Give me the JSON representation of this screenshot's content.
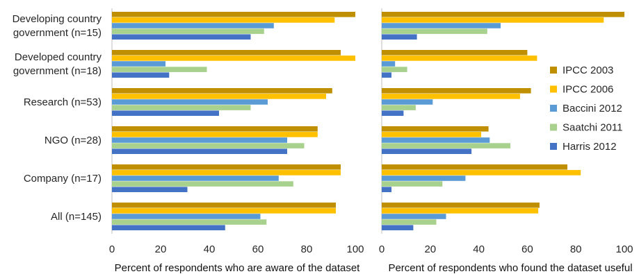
{
  "chart_data": {
    "type": "bar",
    "orientation": "horizontal",
    "categories": [
      [
        "Developing country",
        "government (n=15)"
      ],
      [
        "Developed country",
        "government (n=18)"
      ],
      [
        "Research (n=53)"
      ],
      [
        "NGO (n=28)"
      ],
      [
        "Company (n=17)"
      ],
      [
        "All (n=145)"
      ]
    ],
    "series": [
      {
        "name": "IPCC 2003",
        "color": "#bf8f00"
      },
      {
        "name": "IPCC 2006",
        "color": "#ffc000"
      },
      {
        "name": "Baccini 2012",
        "color": "#5b9bd5"
      },
      {
        "name": "Saatchi 2011",
        "color": "#a9d18e"
      },
      {
        "name": "Harris 2012",
        "color": "#4472c4"
      }
    ],
    "panels": [
      {
        "xlabel": "Percent of respondents who are aware of the dataset",
        "xlim": [
          0,
          100
        ],
        "ticks": [
          0,
          20,
          40,
          60,
          80,
          100
        ],
        "values": [
          [
            100,
            91.5,
            66.5,
            62.5,
            57
          ],
          [
            94,
            100,
            22,
            39,
            23.5
          ],
          [
            90.5,
            88,
            64,
            57,
            44
          ],
          [
            84.5,
            84.5,
            72,
            79,
            72
          ],
          [
            94,
            94,
            68.5,
            74.5,
            31
          ],
          [
            92,
            92,
            61,
            63.5,
            46.5
          ]
        ]
      },
      {
        "xlabel": "Percent of respondents who found the dataset useful",
        "xlim": [
          0,
          100
        ],
        "ticks": [
          0,
          20,
          40,
          60,
          80,
          100
        ],
        "values": [
          [
            100,
            91.5,
            49,
            43.5,
            14.5
          ],
          [
            60,
            64,
            5.5,
            10.5,
            4
          ],
          [
            61.5,
            57,
            21,
            14,
            9
          ],
          [
            44,
            41,
            44.5,
            53,
            37
          ],
          [
            76.5,
            82,
            34.5,
            25,
            4
          ],
          [
            65,
            64.5,
            26.5,
            22.5,
            13
          ]
        ]
      }
    ],
    "legend_position": "right-inside-second-panel",
    "grid": false
  }
}
